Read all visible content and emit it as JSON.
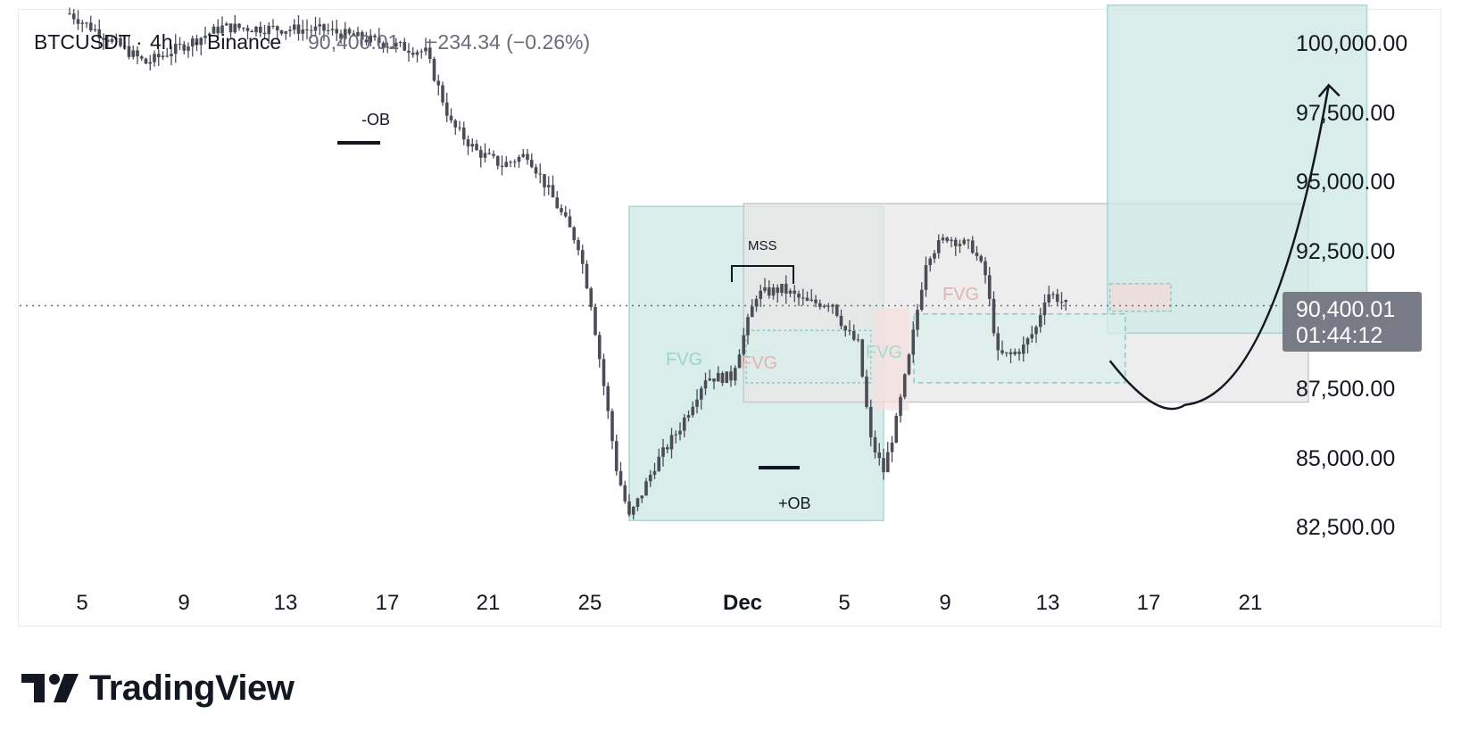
{
  "legend": {
    "symbol": "BTCUSDT",
    "interval": "4h",
    "exchange": "Binance",
    "price": "90,400.01",
    "change": "−234.34 (−0.26%)"
  },
  "price_axis": {
    "labels": [
      "100,000.00",
      "97,500.00",
      "95,000.00",
      "92,500.00",
      "87,500.00",
      "85,000.00",
      "82,500.00"
    ],
    "current_price": "90,400.01",
    "countdown": "01:44:12"
  },
  "time_axis": {
    "labels": [
      "5",
      "9",
      "13",
      "17",
      "21",
      "25",
      "Dec",
      "5",
      "9",
      "13",
      "17",
      "21"
    ]
  },
  "annotations": {
    "bearish_ob": "-OB",
    "bullish_ob": "+OB",
    "mss": "MSS",
    "fvg": "FVG"
  },
  "colors": {
    "candle": "#4a4d55",
    "green_zone": "#cfe9e6",
    "green_zone_border": "#a8d8d2",
    "gray_zone": "#e7e7e7",
    "red_zone": "#f5dede",
    "price_tag": "#787b86"
  },
  "branding": {
    "name": "TradingView"
  },
  "chart_data": {
    "type": "candlestick",
    "symbol": "BTCUSDT",
    "interval": "4h",
    "exchange": "Binance",
    "x_ticks": [
      "5",
      "9",
      "13",
      "17",
      "21",
      "25",
      "Dec",
      "5",
      "9",
      "13",
      "17",
      "21"
    ],
    "y_ticks": [
      100000,
      97500,
      95000,
      92500,
      87500,
      85000,
      82500
    ],
    "ylim": [
      81000,
      101300
    ],
    "last_price": 90400.01,
    "change": -234.34,
    "change_pct": -0.26,
    "path_points": [
      [
        0,
        101000
      ],
      [
        3,
        99200
      ],
      [
        6,
        100500
      ],
      [
        10,
        100400
      ],
      [
        14,
        99600
      ],
      [
        15,
        97000
      ],
      [
        16,
        96000
      ],
      [
        17,
        95500
      ],
      [
        18,
        95900
      ],
      [
        19,
        94300
      ],
      [
        20,
        92600
      ],
      [
        20.5,
        90500
      ],
      [
        21,
        87500
      ],
      [
        21.5,
        84500
      ],
      [
        22,
        82700
      ],
      [
        22.5,
        83600
      ],
      [
        23,
        84600
      ],
      [
        24,
        86000
      ],
      [
        25,
        87800
      ],
      [
        26,
        87800
      ],
      [
        26.5,
        89300
      ],
      [
        27,
        90800
      ],
      [
        28,
        91000
      ],
      [
        29,
        90500
      ],
      [
        30,
        90500
      ],
      [
        30.5,
        89500
      ],
      [
        31,
        89000
      ],
      [
        31.5,
        85500
      ],
      [
        32,
        84400
      ],
      [
        32.5,
        86200
      ],
      [
        33,
        88500
      ],
      [
        33.7,
        92200
      ],
      [
        34.5,
        92900
      ],
      [
        35.5,
        92500
      ],
      [
        36,
        91500
      ],
      [
        36.5,
        88600
      ],
      [
        37,
        88600
      ],
      [
        37.5,
        88900
      ],
      [
        38,
        89600
      ],
      [
        38.4,
        90900
      ],
      [
        38.8,
        90700
      ],
      [
        39.2,
        90400
      ]
    ],
    "zones": [
      {
        "kind": "demand-zone",
        "x0": 22,
        "x1": 32,
        "y0": 82600,
        "y1": 94000
      },
      {
        "kind": "range",
        "x0": 26.5,
        "x1": 48.7,
        "y0": 86900,
        "y1": 94100
      },
      {
        "kind": "target-zone",
        "x0": 40.8,
        "x1": 51,
        "y0": 89400,
        "y1": 101300
      }
    ],
    "projection": {
      "from": [
        40.9,
        88400
      ],
      "low": [
        43.5,
        86800
      ],
      "to": [
        49.5,
        98400
      ]
    }
  }
}
